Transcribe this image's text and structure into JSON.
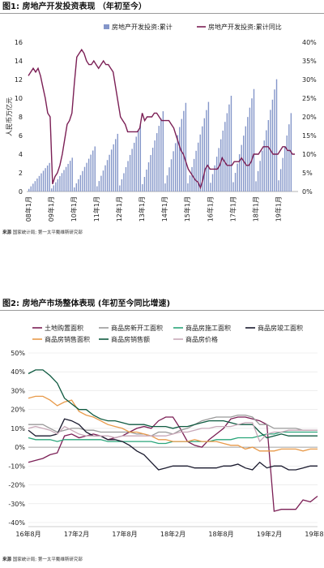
{
  "charts": [
    {
      "figure_title": "图1: 房地产开发投资表现 （年初至今）",
      "source_label": "来源",
      "source_text": "国家统计局; 第一太平戴维斯研究部"
    },
    {
      "figure_title": "图2: 房地产市场整体表现 (年初至今同比增速)",
      "source_label": "来源",
      "source_text": "国家统计局; 第一太平戴维斯研究部"
    }
  ],
  "chart_data": [
    {
      "type": "bar+line",
      "ylabel": "人民币万亿元",
      "ylim": [
        0,
        16
      ],
      "y2lim": [
        0,
        0.4
      ],
      "yticks": [
        "0",
        "2",
        "4",
        "6",
        "8",
        "10",
        "12",
        "14",
        "16"
      ],
      "y2ticks": [
        "0%",
        "5%",
        "10%",
        "15%",
        "20%",
        "25%",
        "30%",
        "35%",
        "40%"
      ],
      "xticks": [
        "08年1月",
        "09年1月",
        "10年1月",
        "11年1月",
        "12年1月",
        "13年1月",
        "14年1月",
        "15年1月",
        "16年1月",
        "17年1月",
        "18年1月",
        "19年1月"
      ],
      "legend_position": "top",
      "series": [
        {
          "name": "房地产开发投资:累计",
          "kind": "bar",
          "axis": "left",
          "color": "#8496c9",
          "year_end_values": [
            3.06,
            3.62,
            4.83,
            6.18,
            7.18,
            8.6,
            9.5,
            9.6,
            10.26,
            10.98,
            12.03,
            8.4
          ]
        },
        {
          "name": "房地产开发投资:累计同比",
          "kind": "line",
          "axis": "right",
          "color": "#7b1f55",
          "values": [
            0.31,
            0.32,
            0.33,
            0.32,
            0.33,
            0.31,
            0.28,
            0.25,
            0.21,
            0.2,
            0.02,
            0.04,
            0.05,
            0.07,
            0.1,
            0.14,
            0.18,
            0.19,
            0.21,
            0.29,
            0.36,
            0.37,
            0.38,
            0.37,
            0.35,
            0.34,
            0.34,
            0.35,
            0.34,
            0.33,
            0.34,
            0.35,
            0.34,
            0.34,
            0.33,
            0.32,
            0.28,
            0.24,
            0.2,
            0.19,
            0.18,
            0.16,
            0.16,
            0.16,
            0.16,
            0.16,
            0.17,
            0.21,
            0.19,
            0.2,
            0.2,
            0.2,
            0.21,
            0.21,
            0.2,
            0.19,
            0.19,
            0.19,
            0.19,
            0.18,
            0.17,
            0.15,
            0.13,
            0.11,
            0.1,
            0.08,
            0.06,
            0.05,
            0.04,
            0.03,
            0.025,
            0.01,
            0.03,
            0.06,
            0.07,
            0.06,
            0.06,
            0.06,
            0.06,
            0.07,
            0.09,
            0.08,
            0.07,
            0.07,
            0.07,
            0.08,
            0.08,
            0.08,
            0.09,
            0.08,
            0.07,
            0.07,
            0.08,
            0.1,
            0.1,
            0.1,
            0.11,
            0.12,
            0.12,
            0.12,
            0.11,
            0.1,
            0.1,
            0.1,
            0.11,
            0.12,
            0.12,
            0.11,
            0.11,
            0.1,
            0.1
          ]
        }
      ]
    },
    {
      "type": "line",
      "ylim": [
        -0.4,
        0.5
      ],
      "yticks": [
        "-40%",
        "-30%",
        "-20%",
        "-10%",
        "0%",
        "10%",
        "20%",
        "30%",
        "40%",
        "50%"
      ],
      "xticks": [
        "16年8月",
        "17年2月",
        "17年8月",
        "18年2月",
        "18年8月",
        "19年2月",
        "19年8月"
      ],
      "legend_position": "top",
      "series": [
        {
          "name": "土地购置面积",
          "color": "#7b1f55",
          "values": [
            -0.08,
            -0.07,
            -0.06,
            -0.04,
            -0.03,
            0.06,
            0.07,
            0.05,
            0.06,
            0.07,
            0.06,
            0.04,
            0.05,
            0.06,
            0.08,
            0.1,
            0.11,
            0.1,
            0.14,
            0.16,
            0.16,
            0.1,
            0.03,
            0.01,
            0.0,
            0.04,
            0.07,
            0.1,
            0.15,
            0.16,
            0.16,
            0.15,
            0.14,
            0.12,
            -0.34,
            -0.33,
            -0.33,
            -0.33,
            -0.28,
            -0.29,
            -0.26
          ]
        },
        {
          "name": "商品房新开工面积",
          "color": "#9a9a9a",
          "values": [
            0.12,
            0.12,
            0.12,
            0.1,
            0.08,
            0.09,
            0.1,
            0.1,
            0.09,
            0.09,
            0.08,
            0.08,
            0.08,
            0.08,
            0.08,
            0.07,
            0.07,
            0.06,
            0.08,
            0.08,
            0.07,
            0.09,
            0.1,
            0.12,
            0.14,
            0.15,
            0.16,
            0.16,
            0.16,
            0.17,
            0.17,
            0.16,
            0.12,
            0.12,
            0.1,
            0.1,
            0.1,
            0.1,
            0.09,
            0.09,
            0.09
          ]
        },
        {
          "name": "商品房施工面积",
          "color": "#2aa57a",
          "values": [
            0.05,
            0.04,
            0.04,
            0.04,
            0.03,
            0.04,
            0.04,
            0.04,
            0.04,
            0.04,
            0.04,
            0.03,
            0.03,
            0.03,
            0.03,
            0.03,
            0.03,
            0.03,
            0.02,
            0.02,
            0.03,
            0.03,
            0.03,
            0.03,
            0.03,
            0.03,
            0.04,
            0.04,
            0.04,
            0.05,
            0.05,
            0.05,
            0.06,
            0.07,
            0.07,
            0.08,
            0.08,
            0.08,
            0.08,
            0.08,
            0.08
          ]
        },
        {
          "name": "商品房竣工面积",
          "color": "#1a1a2e",
          "values": [
            0.09,
            0.06,
            0.06,
            0.06,
            0.07,
            0.15,
            0.14,
            0.12,
            0.08,
            0.06,
            0.06,
            0.04,
            0.04,
            0.03,
            0.01,
            -0.02,
            -0.04,
            -0.08,
            -0.12,
            -0.11,
            -0.1,
            -0.1,
            -0.1,
            -0.11,
            -0.11,
            -0.11,
            -0.11,
            -0.1,
            -0.1,
            -0.09,
            -0.11,
            -0.12,
            -0.08,
            -0.11,
            -0.1,
            -0.1,
            -0.12,
            -0.12,
            -0.11,
            -0.1,
            -0.1
          ]
        },
        {
          "name": "商品房销售面积",
          "color": "#e89a4a",
          "values": [
            0.26,
            0.27,
            0.27,
            0.25,
            0.22,
            0.24,
            0.25,
            0.19,
            0.17,
            0.16,
            0.14,
            0.12,
            0.11,
            0.1,
            0.08,
            0.08,
            0.07,
            0.06,
            0.04,
            0.04,
            0.03,
            0.03,
            0.03,
            0.04,
            0.03,
            0.03,
            0.03,
            0.02,
            0.01,
            0.01,
            -0.01,
            0.0,
            -0.02,
            -0.02,
            -0.02,
            -0.01,
            -0.01,
            -0.01,
            -0.02,
            -0.01,
            -0.01
          ]
        },
        {
          "name": "商品房销售额",
          "color": "#0f5a40",
          "values": [
            0.39,
            0.41,
            0.41,
            0.38,
            0.34,
            0.26,
            0.23,
            0.2,
            0.2,
            0.17,
            0.15,
            0.14,
            0.14,
            0.13,
            0.12,
            0.12,
            0.12,
            0.11,
            0.11,
            0.11,
            0.1,
            0.11,
            0.11,
            0.12,
            0.13,
            0.14,
            0.14,
            0.14,
            0.13,
            0.12,
            0.12,
            0.12,
            0.08,
            0.05,
            0.06,
            0.07,
            0.06,
            0.06,
            0.06,
            0.06,
            0.06
          ]
        },
        {
          "name": "商品房价格",
          "color": "#c8a8b8",
          "values": [
            0.1,
            0.11,
            0.1,
            0.09,
            0.07,
            0.11,
            0.09,
            0.07,
            0.06,
            0.06,
            0.06,
            0.06,
            0.05,
            0.06,
            0.06,
            0.06,
            0.06,
            0.06,
            0.06,
            0.06,
            0.07,
            0.08,
            0.08,
            0.09,
            0.1,
            0.1,
            0.11,
            0.11,
            0.11,
            0.12,
            0.13,
            0.13,
            0.03,
            0.07,
            0.08,
            0.08,
            0.09,
            0.09,
            0.09,
            0.09,
            0.09
          ]
        }
      ]
    }
  ]
}
